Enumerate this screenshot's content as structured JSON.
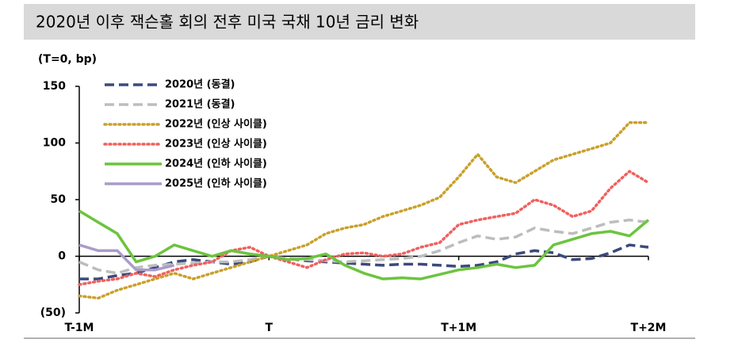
{
  "chart_data": {
    "type": "line",
    "title": "2020년 이후 잭슨홀 회의 전후 미국 국채 10년 금리 변화",
    "ylabel": "(T=0, bp)",
    "x": [
      -1.0,
      -0.9,
      -0.8,
      -0.7,
      -0.6,
      -0.5,
      -0.4,
      -0.3,
      -0.2,
      -0.1,
      0,
      0.1,
      0.2,
      0.3,
      0.4,
      0.5,
      0.6,
      0.7,
      0.8,
      0.9,
      1.0,
      1.1,
      1.2,
      1.3,
      1.4,
      1.5,
      1.6,
      1.7,
      1.8,
      1.9,
      2.0
    ],
    "xlim": [
      -1,
      2
    ],
    "xticks": [
      {
        "value": -1,
        "label": "T-1M"
      },
      {
        "value": 0,
        "label": "T"
      },
      {
        "value": 1,
        "label": "T+1M"
      },
      {
        "value": 2,
        "label": "T+2M"
      }
    ],
    "ylim": [
      -50,
      150
    ],
    "yticks": [
      {
        "value": -50,
        "label": "(50)"
      },
      0,
      50,
      100,
      150
    ],
    "series": [
      {
        "name": "2020년 (동결)",
        "color": "#3b4a7c",
        "style": "dashed",
        "values": [
          -20,
          -20,
          -17,
          -15,
          -10,
          -5,
          -3,
          -5,
          -7,
          -5,
          0,
          -2,
          -4,
          -5,
          -6,
          -7,
          -8,
          -7,
          -7,
          -8,
          -9,
          -8,
          -5,
          2,
          5,
          3,
          -3,
          -2,
          3,
          10,
          8
        ]
      },
      {
        "name": "2021년 (동결)",
        "color": "#bdbdbd",
        "style": "dashed",
        "values": [
          -5,
          -12,
          -15,
          -10,
          -8,
          -7,
          -6,
          -5,
          -5,
          -3,
          0,
          -2,
          -3,
          -4,
          -5,
          -4,
          -3,
          -2,
          0,
          5,
          12,
          18,
          15,
          17,
          25,
          22,
          20,
          25,
          30,
          32,
          30
        ]
      },
      {
        "name": "2022년 (인상 사이클)",
        "color": "#c9a02a",
        "style": "dotted",
        "values": [
          -35,
          -37,
          -30,
          -25,
          -20,
          -15,
          -20,
          -15,
          -10,
          -5,
          0,
          5,
          10,
          20,
          25,
          28,
          35,
          40,
          45,
          52,
          70,
          90,
          70,
          65,
          75,
          85,
          90,
          95,
          100,
          118,
          118
        ]
      },
      {
        "name": "2023년 (인상 사이클)",
        "color": "#f0605e",
        "style": "dotted",
        "values": [
          -25,
          -22,
          -20,
          -15,
          -18,
          -12,
          -8,
          -5,
          5,
          8,
          0,
          -5,
          -10,
          -3,
          2,
          3,
          0,
          2,
          8,
          12,
          28,
          32,
          35,
          38,
          50,
          45,
          35,
          40,
          60,
          75,
          65
        ]
      },
      {
        "name": "2024년 (인하 사이클)",
        "color": "#6cc43e",
        "style": "solid",
        "values": [
          40,
          30,
          20,
          -5,
          0,
          10,
          5,
          0,
          5,
          2,
          0,
          -3,
          -2,
          2,
          -8,
          -15,
          -20,
          -19,
          -20,
          -16,
          -12,
          -10,
          -7,
          -10,
          -8,
          10,
          15,
          20,
          22,
          18,
          32
        ]
      },
      {
        "name": "2025년 (인하 사이클)",
        "color": "#a99cc9",
        "style": "solid",
        "values": [
          10,
          5,
          5,
          -12,
          -12,
          -8,
          null,
          null,
          null,
          null,
          null,
          null,
          null,
          null,
          null,
          null,
          null,
          null,
          null,
          null,
          null,
          null,
          null,
          null,
          null,
          null,
          null,
          null,
          null,
          null,
          null
        ]
      }
    ]
  }
}
